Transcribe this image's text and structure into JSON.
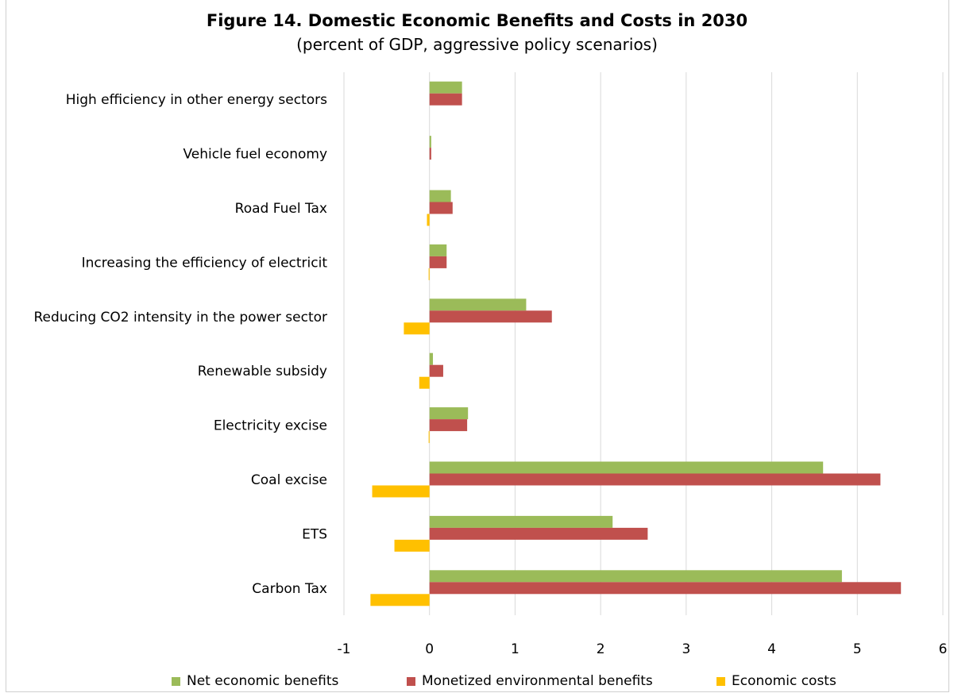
{
  "chart_data": {
    "type": "bar",
    "orientation": "horizontal",
    "title": "Figure 14. Domestic Economic Benefits and Costs in 2030",
    "subtitle": "(percent of GDP, aggressive policy scenarios)",
    "categories": [
      "High efficiency in other energy sectors",
      "Vehicle fuel economy",
      "Road Fuel Tax",
      "Increasing the efficiency of electricit",
      "Reducing CO2 intensity in the power sector",
      "Renewable subsidy",
      "Electricity excise",
      "Coal excise",
      "ETS",
      "Carbon Tax"
    ],
    "series": [
      {
        "name": "Net economic benefits",
        "color": "#9bbb59",
        "values": [
          0.38,
          0.02,
          0.25,
          0.2,
          1.13,
          0.04,
          0.45,
          4.6,
          2.14,
          4.82
        ]
      },
      {
        "name": "Monetized environmental benefits",
        "color": "#c0504d",
        "values": [
          0.38,
          0.02,
          0.27,
          0.2,
          1.43,
          0.16,
          0.44,
          5.27,
          2.55,
          5.51
        ]
      },
      {
        "name": "Economic costs",
        "color": "#ffc000",
        "values": [
          0.0,
          0.0,
          -0.03,
          -0.01,
          -0.3,
          -0.12,
          -0.01,
          -0.67,
          -0.41,
          -0.69
        ]
      }
    ],
    "xlim": [
      -1,
      6
    ],
    "xticks": [
      "-1",
      "0",
      "1",
      "2",
      "3",
      "4",
      "5",
      "6"
    ],
    "grid": true,
    "legend_position": "bottom"
  }
}
